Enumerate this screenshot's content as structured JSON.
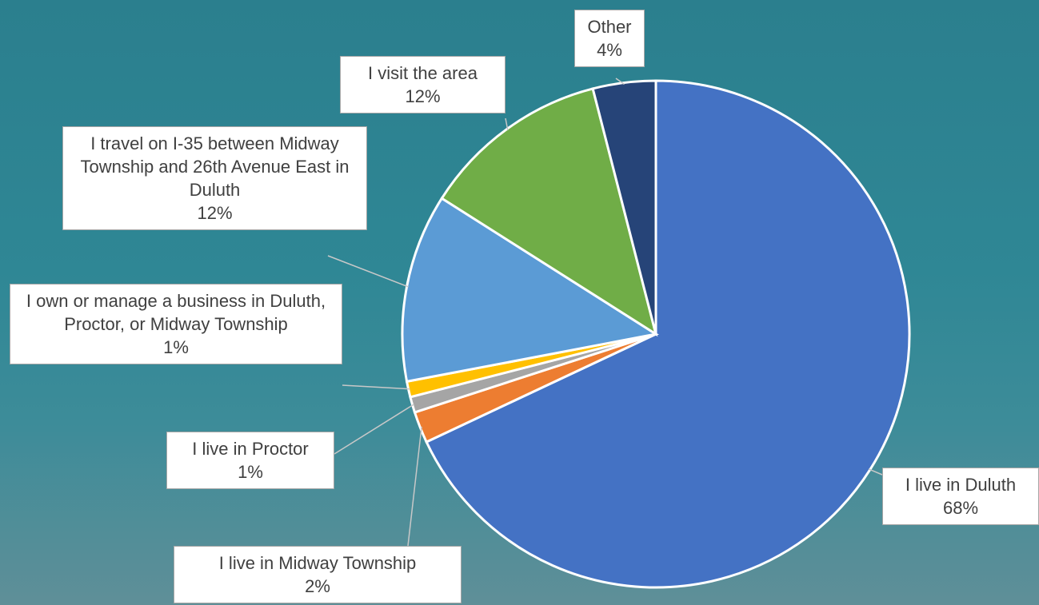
{
  "chart_data": {
    "type": "pie",
    "categories": [
      "I live in Duluth",
      "I live in Midway Township",
      "I live in Proctor",
      "I own or manage a business in Duluth, Proctor, or Midway Township",
      "I travel on I-35 between Midway Township and 26th Avenue East in Duluth",
      "I visit the area",
      "Other"
    ],
    "values": [
      68,
      2,
      1,
      1,
      12,
      12,
      4
    ],
    "value_labels": [
      "68%",
      "2%",
      "1%",
      "1%",
      "12%",
      "12%",
      "4%"
    ],
    "colors": [
      "#4472c4",
      "#ed7d31",
      "#a5a5a5",
      "#ffc000",
      "#5b9bd5",
      "#70ad47",
      "#264478"
    ]
  }
}
